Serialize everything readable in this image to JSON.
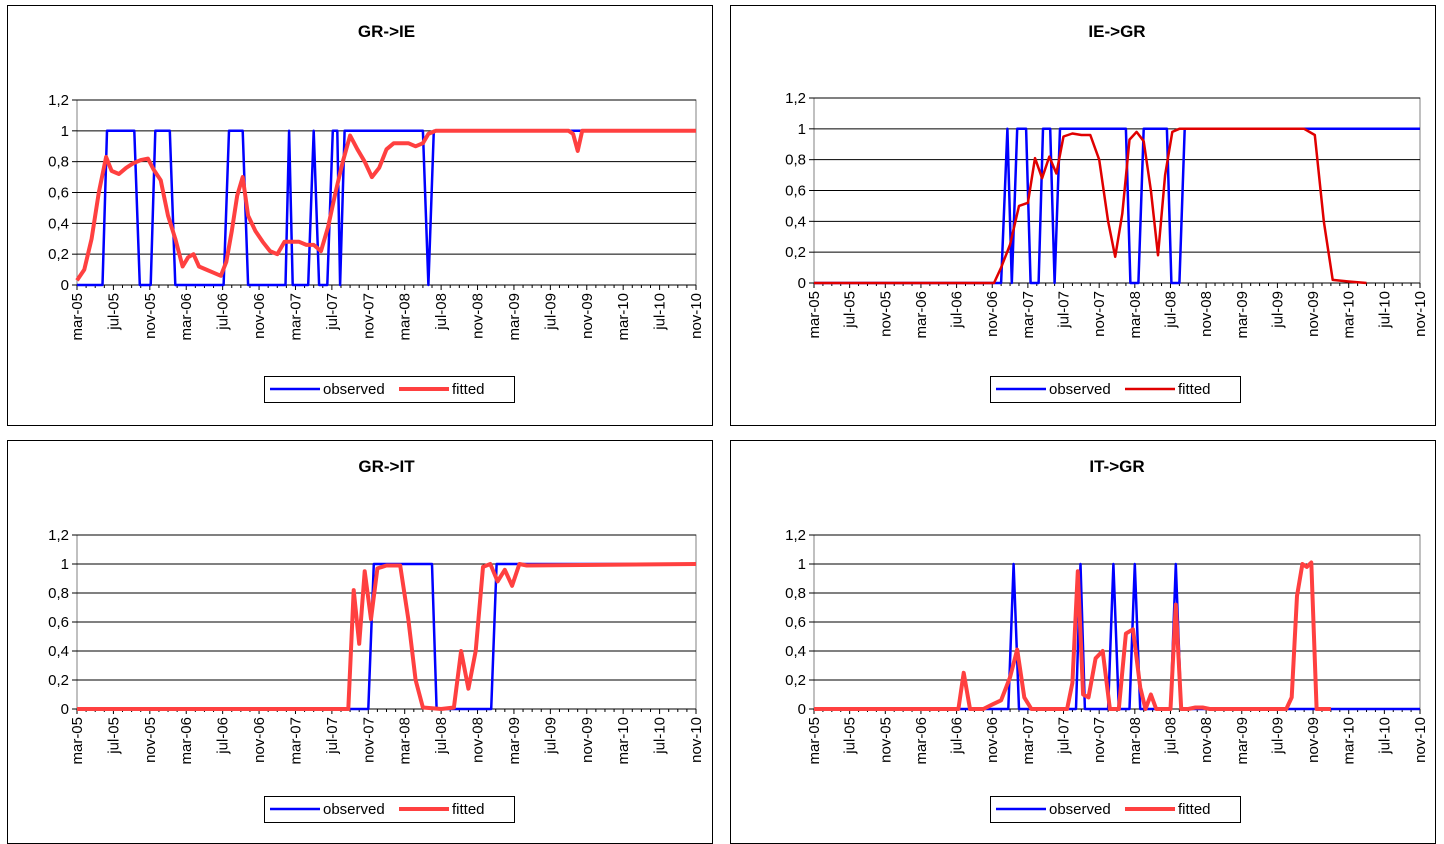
{
  "chart_data": [
    {
      "type": "line",
      "title": "GR->IE",
      "ylim": [
        0,
        1.2
      ],
      "yticks": [
        "0",
        "0,2",
        "0,4",
        "0,6",
        "0,8",
        "1",
        "1,2"
      ],
      "xticks": [
        "mar-05",
        "jul-05",
        "nov-05",
        "mar-06",
        "jul-06",
        "nov-06",
        "mar-07",
        "jul-07",
        "nov-07",
        "mar-08",
        "jul-08",
        "nov-08",
        "mar-09",
        "jul-09",
        "nov-09",
        "mar-10",
        "jul-10",
        "nov-10"
      ],
      "grid": true,
      "legend": "bottom",
      "series": [
        {
          "name": "observed",
          "color": "#0000ff",
          "width": 2.5,
          "points": [
            [
              0,
              0
            ],
            [
              2.8,
              0
            ],
            [
              3.3,
              1
            ],
            [
              6.3,
              1
            ],
            [
              6.9,
              0
            ],
            [
              8.1,
              0
            ],
            [
              8.6,
              1
            ],
            [
              10.2,
              1
            ],
            [
              10.8,
              0
            ],
            [
              16.1,
              0
            ],
            [
              16.7,
              1
            ],
            [
              18.2,
              1
            ],
            [
              18.8,
              0
            ],
            [
              22.9,
              0
            ],
            [
              23.3,
              1
            ],
            [
              23.7,
              0
            ],
            [
              25.4,
              0
            ],
            [
              26.0,
              1
            ],
            [
              26.6,
              0
            ],
            [
              27.5,
              0
            ],
            [
              28.1,
              1
            ],
            [
              28.6,
              1
            ],
            [
              28.9,
              0
            ],
            [
              29.4,
              1
            ],
            [
              38.0,
              1
            ],
            [
              38.6,
              0
            ],
            [
              39.2,
              1
            ],
            [
              68.0,
              1
            ]
          ]
        },
        {
          "name": "fitted",
          "color": "#ff4040",
          "width": 4,
          "points": [
            [
              0,
              0.03
            ],
            [
              0.8,
              0.1
            ],
            [
              1.6,
              0.3
            ],
            [
              2.4,
              0.6
            ],
            [
              3.2,
              0.83
            ],
            [
              3.8,
              0.74
            ],
            [
              4.6,
              0.72
            ],
            [
              5.4,
              0.76
            ],
            [
              6.2,
              0.79
            ],
            [
              7.0,
              0.81
            ],
            [
              7.8,
              0.82
            ],
            [
              8.4,
              0.75
            ],
            [
              9.2,
              0.68
            ],
            [
              10,
              0.45
            ],
            [
              10.8,
              0.3
            ],
            [
              11.6,
              0.12
            ],
            [
              12.2,
              0.18
            ],
            [
              12.8,
              0.2
            ],
            [
              13.4,
              0.12
            ],
            [
              14.2,
              0.1
            ],
            [
              15.0,
              0.08
            ],
            [
              15.8,
              0.06
            ],
            [
              16.4,
              0.15
            ],
            [
              17.0,
              0.35
            ],
            [
              17.6,
              0.58
            ],
            [
              18.2,
              0.7
            ],
            [
              18.8,
              0.45
            ],
            [
              19.6,
              0.35
            ],
            [
              20.4,
              0.28
            ],
            [
              21.2,
              0.22
            ],
            [
              22.0,
              0.2
            ],
            [
              22.8,
              0.28
            ],
            [
              23.6,
              0.28
            ],
            [
              24.4,
              0.28
            ],
            [
              25.2,
              0.26
            ],
            [
              26.0,
              0.26
            ],
            [
              26.8,
              0.22
            ],
            [
              27.6,
              0.38
            ],
            [
              28.4,
              0.6
            ],
            [
              29.2,
              0.8
            ],
            [
              30.0,
              0.97
            ],
            [
              30.8,
              0.88
            ],
            [
              31.6,
              0.8
            ],
            [
              32.4,
              0.7
            ],
            [
              33.2,
              0.76
            ],
            [
              34.0,
              0.88
            ],
            [
              34.8,
              0.92
            ],
            [
              35.6,
              0.92
            ],
            [
              36.4,
              0.92
            ],
            [
              37.2,
              0.9
            ],
            [
              38.0,
              0.92
            ],
            [
              38.6,
              0.98
            ],
            [
              39.4,
              1.0
            ],
            [
              54.0,
              1.0
            ],
            [
              54.5,
              0.98
            ],
            [
              55.0,
              0.87
            ],
            [
              55.5,
              1.0
            ],
            [
              68.0,
              1.0
            ]
          ]
        }
      ]
    },
    {
      "type": "line",
      "title": "IE->GR",
      "ylim": [
        0,
        1.2
      ],
      "yticks": [
        "0",
        "0,2",
        "0,4",
        "0,6",
        "0,8",
        "1",
        "1,2"
      ],
      "xticks": [
        "mar-05",
        "jul-05",
        "nov-05",
        "mar-06",
        "jul-06",
        "nov-06",
        "mar-07",
        "jul-07",
        "nov-07",
        "mar-08",
        "jul-08",
        "nov-08",
        "mar-09",
        "jul-09",
        "nov-09",
        "mar-10",
        "jul-10",
        "nov-10"
      ],
      "grid": true,
      "legend": "bottom",
      "series": [
        {
          "name": "observed",
          "color": "#0000ff",
          "width": 2.5,
          "points": [
            [
              0,
              0
            ],
            [
              21.0,
              0
            ],
            [
              21.7,
              1
            ],
            [
              22.2,
              0
            ],
            [
              22.8,
              1
            ],
            [
              23.8,
              1
            ],
            [
              24.3,
              0
            ],
            [
              25.2,
              0
            ],
            [
              25.7,
              1
            ],
            [
              26.5,
              1
            ],
            [
              27.0,
              0
            ],
            [
              27.6,
              1
            ],
            [
              35.0,
              1
            ],
            [
              35.5,
              0
            ],
            [
              36.4,
              0
            ],
            [
              37.0,
              1
            ],
            [
              39.6,
              1
            ],
            [
              40.1,
              0
            ],
            [
              41.0,
              0
            ],
            [
              41.6,
              1
            ],
            [
              68.0,
              1
            ]
          ]
        },
        {
          "name": "fitted",
          "color": "#e00000",
          "width": 2.5,
          "points": [
            [
              0,
              0
            ],
            [
              20.2,
              0
            ],
            [
              21.0,
              0.1
            ],
            [
              22.0,
              0.25
            ],
            [
              23.0,
              0.5
            ],
            [
              24.0,
              0.52
            ],
            [
              24.8,
              0.81
            ],
            [
              25.6,
              0.68
            ],
            [
              26.4,
              0.82
            ],
            [
              27.2,
              0.71
            ],
            [
              28.0,
              0.95
            ],
            [
              29.0,
              0.97
            ],
            [
              30.0,
              0.96
            ],
            [
              31.0,
              0.96
            ],
            [
              32.0,
              0.8
            ],
            [
              33.0,
              0.4
            ],
            [
              33.8,
              0.17
            ],
            [
              34.6,
              0.45
            ],
            [
              35.4,
              0.93
            ],
            [
              36.2,
              0.98
            ],
            [
              37.0,
              0.92
            ],
            [
              37.8,
              0.6
            ],
            [
              38.6,
              0.18
            ],
            [
              39.4,
              0.7
            ],
            [
              40.2,
              0.98
            ],
            [
              41.0,
              1.0
            ],
            [
              55.0,
              1.0
            ],
            [
              56.2,
              0.96
            ],
            [
              57.2,
              0.4
            ],
            [
              58.2,
              0.02
            ],
            [
              60.0,
              0.01
            ],
            [
              62.0,
              0.0
            ]
          ]
        }
      ]
    },
    {
      "type": "line",
      "title": "GR->IT",
      "ylim": [
        0,
        1.2
      ],
      "yticks": [
        "0",
        "0,2",
        "0,4",
        "0,6",
        "0,8",
        "1",
        "1,2"
      ],
      "xticks": [
        "mar-05",
        "jul-05",
        "nov-05",
        "mar-06",
        "jul-06",
        "nov-06",
        "mar-07",
        "jul-07",
        "nov-07",
        "mar-08",
        "jul-08",
        "nov-08",
        "mar-09",
        "jul-09",
        "nov-09",
        "mar-10",
        "jul-10",
        "nov-10"
      ],
      "grid": true,
      "legend": "bottom",
      "series": [
        {
          "name": "observed",
          "color": "#0000ff",
          "width": 2.5,
          "points": [
            [
              0,
              0
            ],
            [
              32.0,
              0
            ],
            [
              32.6,
              1
            ],
            [
              39.0,
              1
            ],
            [
              39.5,
              0
            ],
            [
              45.5,
              0
            ],
            [
              46.1,
              1
            ],
            [
              68.0,
              1
            ]
          ]
        },
        {
          "name": "fitted",
          "color": "#ff4040",
          "width": 4,
          "points": [
            [
              0,
              0
            ],
            [
              29.8,
              0
            ],
            [
              30.4,
              0.82
            ],
            [
              31.0,
              0.45
            ],
            [
              31.6,
              0.95
            ],
            [
              32.3,
              0.62
            ],
            [
              33.0,
              0.97
            ],
            [
              34.0,
              0.99
            ],
            [
              35.5,
              0.99
            ],
            [
              36.4,
              0.62
            ],
            [
              37.2,
              0.2
            ],
            [
              38.0,
              0.01
            ],
            [
              40.0,
              0.0
            ],
            [
              41.4,
              0.01
            ],
            [
              42.2,
              0.4
            ],
            [
              43.0,
              0.14
            ],
            [
              43.8,
              0.4
            ],
            [
              44.6,
              0.98
            ],
            [
              45.4,
              1.0
            ],
            [
              46.2,
              0.88
            ],
            [
              47.0,
              0.96
            ],
            [
              47.8,
              0.85
            ],
            [
              48.6,
              1.0
            ],
            [
              49.4,
              0.99
            ],
            [
              68.0,
              1.0
            ]
          ]
        }
      ]
    },
    {
      "type": "line",
      "title": "IT->GR",
      "ylim": [
        0,
        1.2
      ],
      "yticks": [
        "0",
        "0,2",
        "0,4",
        "0,6",
        "0,8",
        "1",
        "1,2"
      ],
      "xticks": [
        "mar-05",
        "jul-05",
        "nov-05",
        "mar-06",
        "jul-06",
        "nov-06",
        "mar-07",
        "jul-07",
        "nov-07",
        "mar-08",
        "jul-08",
        "nov-08",
        "mar-09",
        "jul-09",
        "nov-09",
        "mar-10",
        "jul-10",
        "nov-10"
      ],
      "grid": true,
      "legend": "bottom",
      "series": [
        {
          "name": "observed",
          "color": "#0000ff",
          "width": 2.5,
          "points": [
            [
              0,
              0
            ],
            [
              21.8,
              0
            ],
            [
              22.4,
              1
            ],
            [
              23.0,
              0
            ],
            [
              29.4,
              0
            ],
            [
              29.9,
              1
            ],
            [
              30.4,
              0
            ],
            [
              33.0,
              0
            ],
            [
              33.6,
              1
            ],
            [
              34.2,
              0
            ],
            [
              35.4,
              0
            ],
            [
              36.0,
              1
            ],
            [
              36.6,
              0
            ],
            [
              40.0,
              0
            ],
            [
              40.6,
              1
            ],
            [
              41.2,
              0
            ],
            [
              68.0,
              0
            ]
          ]
        },
        {
          "name": "fitted",
          "color": "#ff4040",
          "width": 4,
          "points": [
            [
              0,
              0
            ],
            [
              16.2,
              0
            ],
            [
              16.8,
              0.25
            ],
            [
              17.5,
              0.0
            ],
            [
              19.0,
              0.0
            ],
            [
              20.0,
              0.03
            ],
            [
              21.0,
              0.06
            ],
            [
              22.0,
              0.22
            ],
            [
              22.8,
              0.41
            ],
            [
              23.6,
              0.08
            ],
            [
              24.4,
              0.0
            ],
            [
              28.4,
              0.0
            ],
            [
              29.0,
              0.18
            ],
            [
              29.6,
              0.95
            ],
            [
              30.2,
              0.1
            ],
            [
              30.8,
              0.08
            ],
            [
              31.6,
              0.35
            ],
            [
              32.4,
              0.4
            ],
            [
              33.2,
              0.0
            ],
            [
              34.2,
              0.0
            ],
            [
              35.0,
              0.52
            ],
            [
              35.8,
              0.55
            ],
            [
              36.6,
              0.15
            ],
            [
              37.2,
              0.0
            ],
            [
              37.8,
              0.1
            ],
            [
              38.4,
              0.0
            ],
            [
              40.0,
              0.0
            ],
            [
              40.6,
              0.72
            ],
            [
              41.2,
              0.0
            ],
            [
              42.0,
              0.0
            ],
            [
              42.8,
              0.01
            ],
            [
              43.6,
              0.01
            ],
            [
              44.4,
              0.0
            ],
            [
              53.0,
              0.0
            ],
            [
              53.6,
              0.08
            ],
            [
              54.2,
              0.78
            ],
            [
              54.8,
              1.0
            ],
            [
              55.3,
              0.98
            ],
            [
              55.8,
              1.01
            ],
            [
              56.4,
              0.0
            ],
            [
              58.0,
              0.0
            ]
          ]
        }
      ]
    }
  ]
}
